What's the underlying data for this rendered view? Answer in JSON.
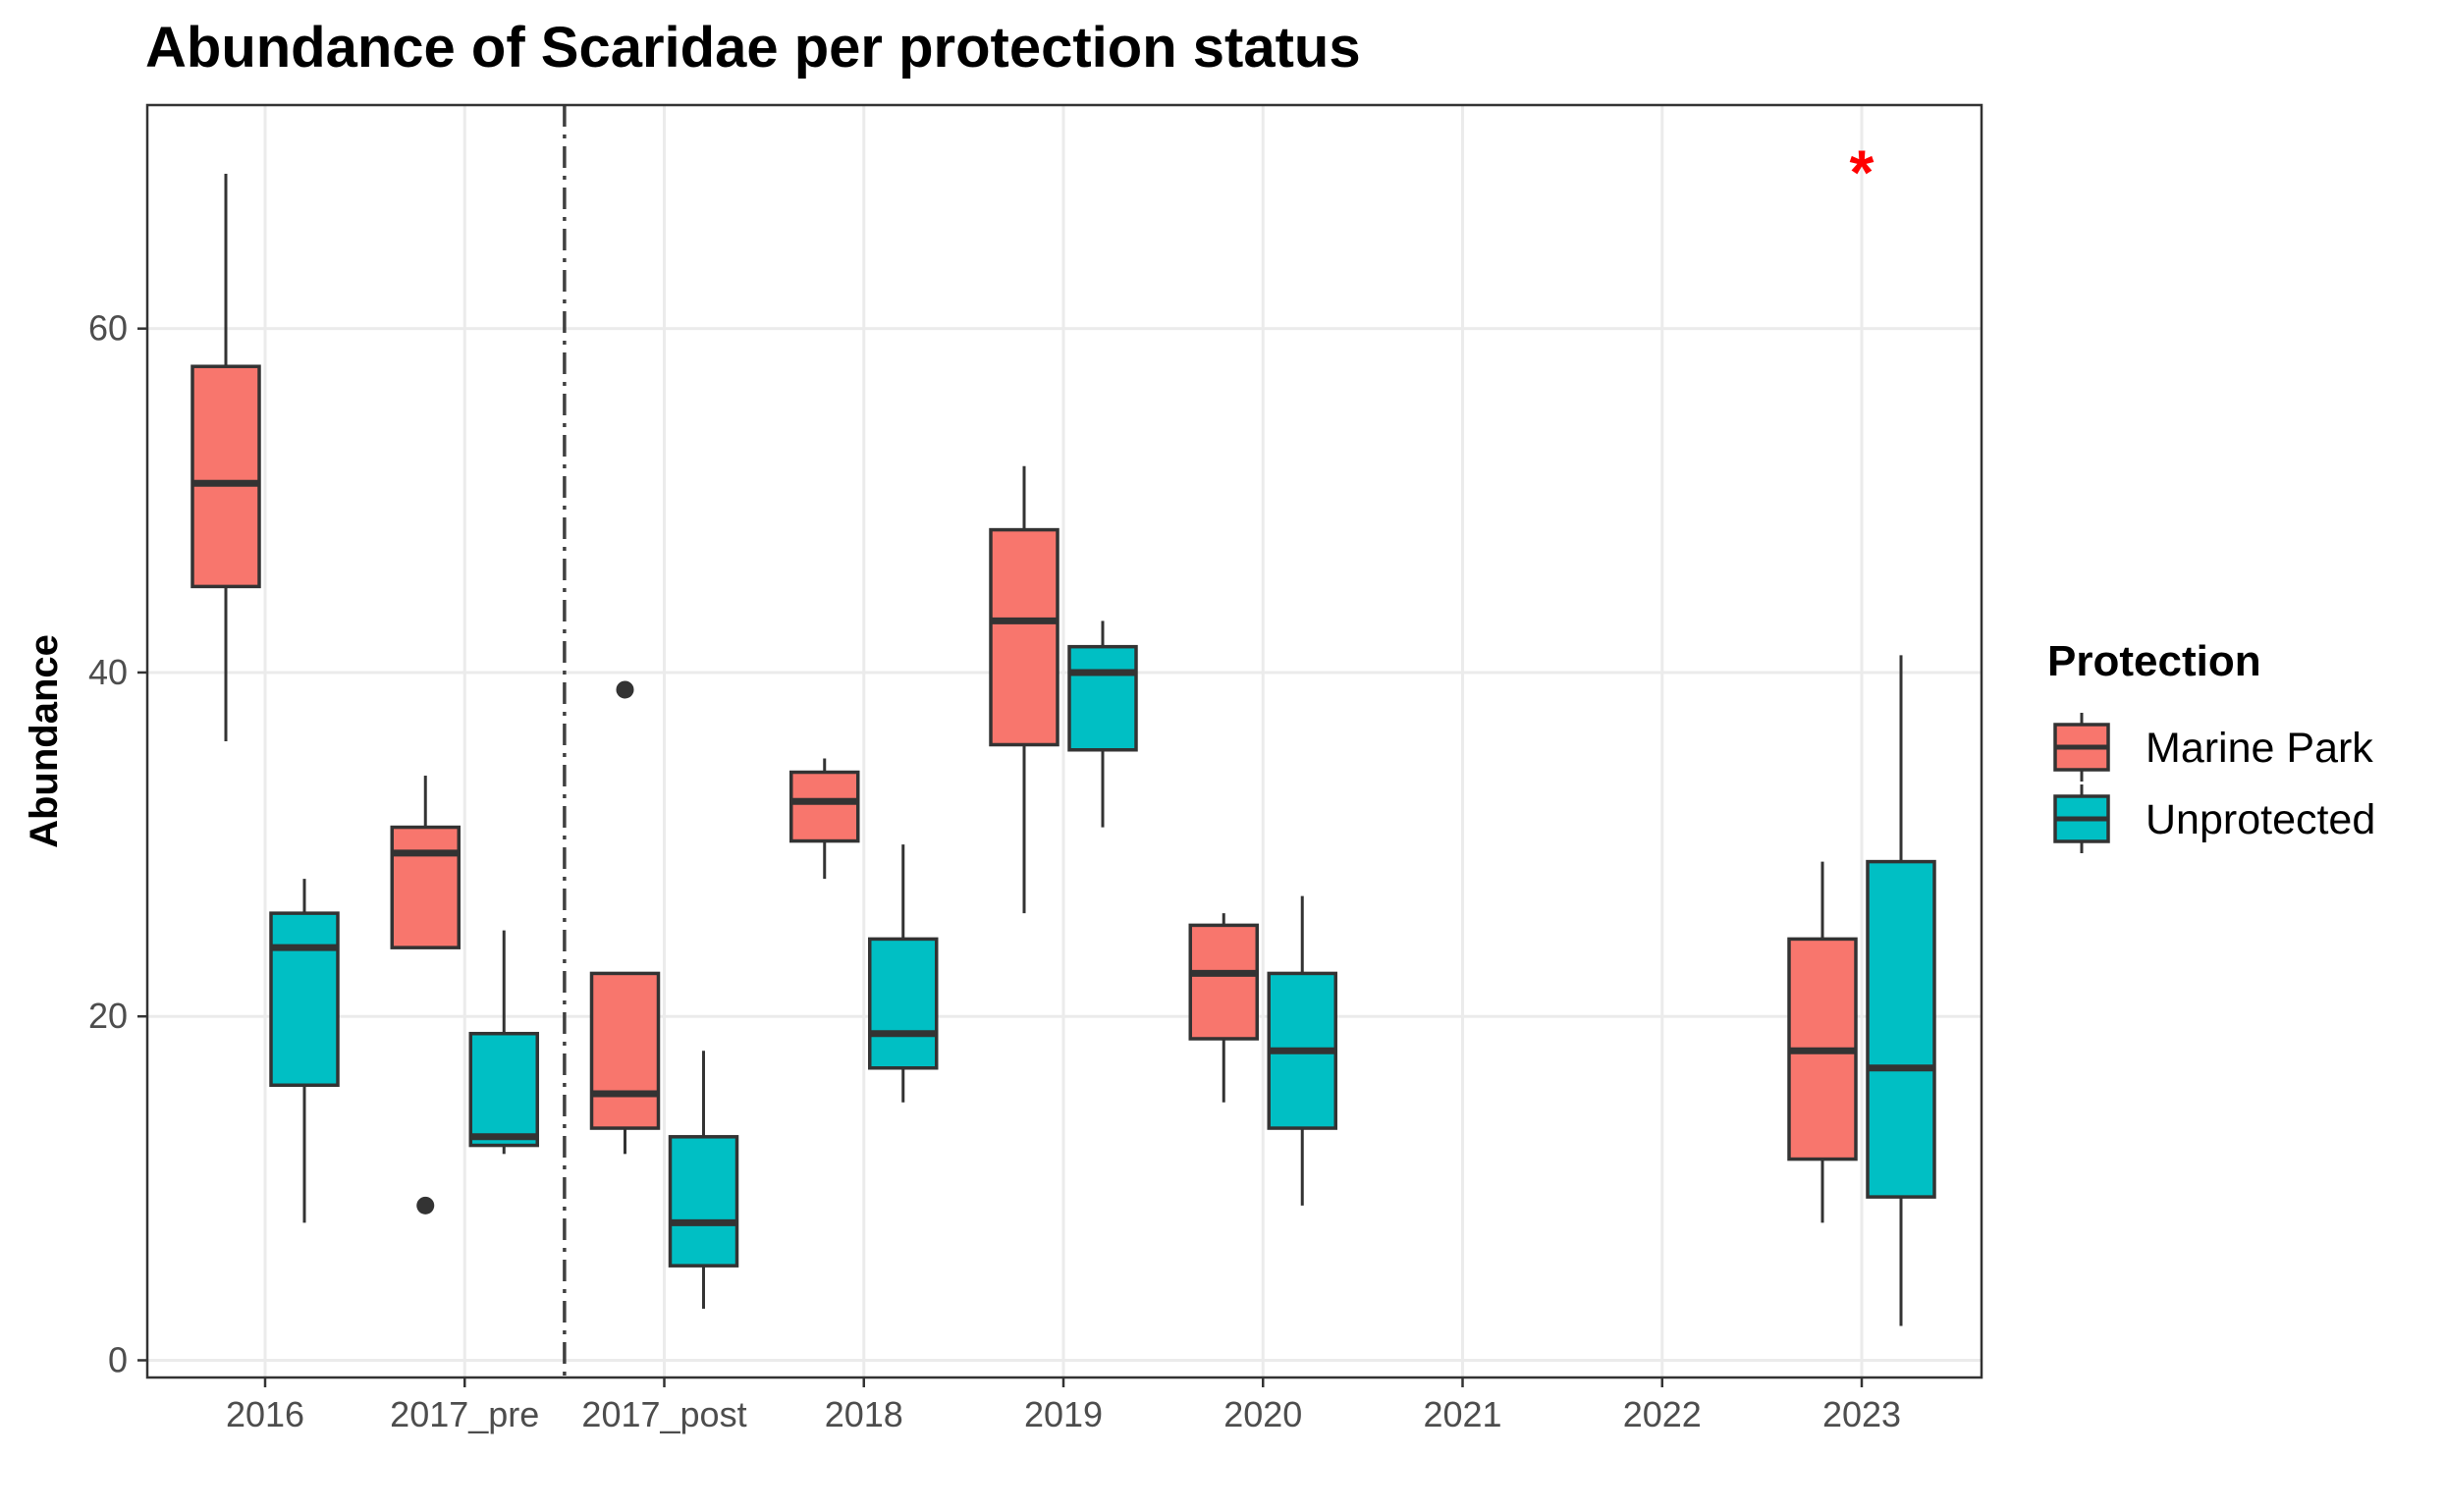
{
  "chart_data": {
    "type": "boxplot",
    "title": "Abundance of Scaridae per protection status",
    "xlabel": "",
    "ylabel": "Abundance",
    "ylim": [
      -1,
      73
    ],
    "y_ticks": [
      0,
      20,
      40,
      60
    ],
    "categories": [
      "2016",
      "2017_pre",
      "2017_post",
      "2018",
      "2019",
      "2020",
      "2021",
      "2022",
      "2023"
    ],
    "legend": {
      "title": "Protection",
      "position": "right"
    },
    "grid": true,
    "series": [
      {
        "name": "Marine Park",
        "color": "#F8766D",
        "boxes": [
          {
            "category": "2016",
            "min": 36,
            "q1": 45,
            "median": 51,
            "q3": 57.8,
            "max": 69,
            "outliers": []
          },
          {
            "category": "2017_pre",
            "min": 24,
            "q1": 24,
            "median": 29.5,
            "q3": 31,
            "max": 34,
            "outliers": [
              9
            ]
          },
          {
            "category": "2017_post",
            "min": 12,
            "q1": 13.5,
            "median": 15.5,
            "q3": 22.5,
            "max": 22.5,
            "outliers": [
              39
            ]
          },
          {
            "category": "2018",
            "min": 28,
            "q1": 30.2,
            "median": 32.5,
            "q3": 34.2,
            "max": 35,
            "outliers": []
          },
          {
            "category": "2019",
            "min": 26,
            "q1": 35.8,
            "median": 43,
            "q3": 48.3,
            "max": 52,
            "outliers": []
          },
          {
            "category": "2020",
            "min": 15,
            "q1": 18.7,
            "median": 22.5,
            "q3": 25.3,
            "max": 26,
            "outliers": []
          },
          {
            "category": "2023",
            "min": 8,
            "q1": 11.7,
            "median": 18,
            "q3": 24.5,
            "max": 29,
            "outliers": []
          }
        ]
      },
      {
        "name": "Unprotected",
        "color": "#00BFC4",
        "boxes": [
          {
            "category": "2016",
            "min": 8,
            "q1": 16,
            "median": 24,
            "q3": 26,
            "max": 28,
            "outliers": []
          },
          {
            "category": "2017_pre",
            "min": 12,
            "q1": 12.5,
            "median": 13,
            "q3": 19,
            "max": 25,
            "outliers": []
          },
          {
            "category": "2017_post",
            "min": 3,
            "q1": 5.5,
            "median": 8,
            "q3": 13,
            "max": 18,
            "outliers": []
          },
          {
            "category": "2018",
            "min": 15,
            "q1": 17,
            "median": 19,
            "q3": 24.5,
            "max": 30,
            "outliers": []
          },
          {
            "category": "2019",
            "min": 31,
            "q1": 35.5,
            "median": 40,
            "q3": 41.5,
            "max": 43,
            "outliers": []
          },
          {
            "category": "2020",
            "min": 9,
            "q1": 13.5,
            "median": 18,
            "q3": 22.5,
            "max": 27,
            "outliers": []
          },
          {
            "category": "2023",
            "min": 2,
            "q1": 9.5,
            "median": 17,
            "q3": 29,
            "max": 41,
            "outliers": []
          }
        ]
      }
    ],
    "annotations": [
      {
        "type": "vline",
        "style": "dashdot",
        "between": [
          "2017_pre",
          "2017_post"
        ]
      },
      {
        "type": "text",
        "text": "*",
        "color": "#ff0000",
        "category": "2023",
        "y": 70
      }
    ]
  }
}
